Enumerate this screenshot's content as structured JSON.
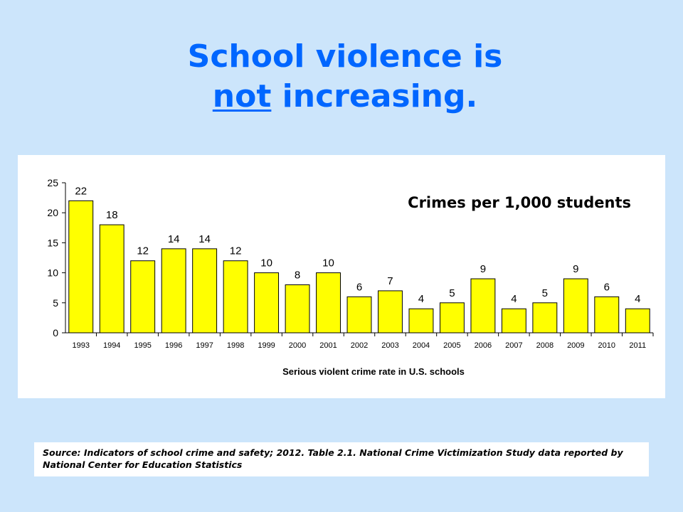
{
  "slide": {
    "title_line1": "School violence is",
    "title_line2_underlined": "not",
    "title_line2_rest": " increasing.",
    "source": "Source: Indicators of school crime and safety; 2012. Table 2.1. National Crime Victimization Study data reported by National Center for Education Statistics"
  },
  "chart_data": {
    "type": "bar",
    "title": "Crimes per 1,000 students",
    "xlabel": "Serious violent crime rate in U.S. schools",
    "ylabel": "",
    "categories": [
      "1993",
      "1994",
      "1995",
      "1996",
      "1997",
      "1998",
      "1999",
      "2000",
      "2001",
      "2002",
      "2003",
      "2004",
      "2005",
      "2006",
      "2007",
      "2008",
      "2009",
      "2010",
      "2011"
    ],
    "values": [
      22,
      18,
      12,
      14,
      14,
      12,
      10,
      8,
      10,
      6,
      7,
      4,
      5,
      9,
      4,
      5,
      9,
      6,
      4
    ],
    "ylim": [
      0,
      25
    ],
    "yticks": [
      0,
      5,
      10,
      15,
      20,
      25
    ],
    "grid": false,
    "data_labels": true,
    "bar_color": "#ffff00",
    "bar_edge_color": "#000000"
  }
}
